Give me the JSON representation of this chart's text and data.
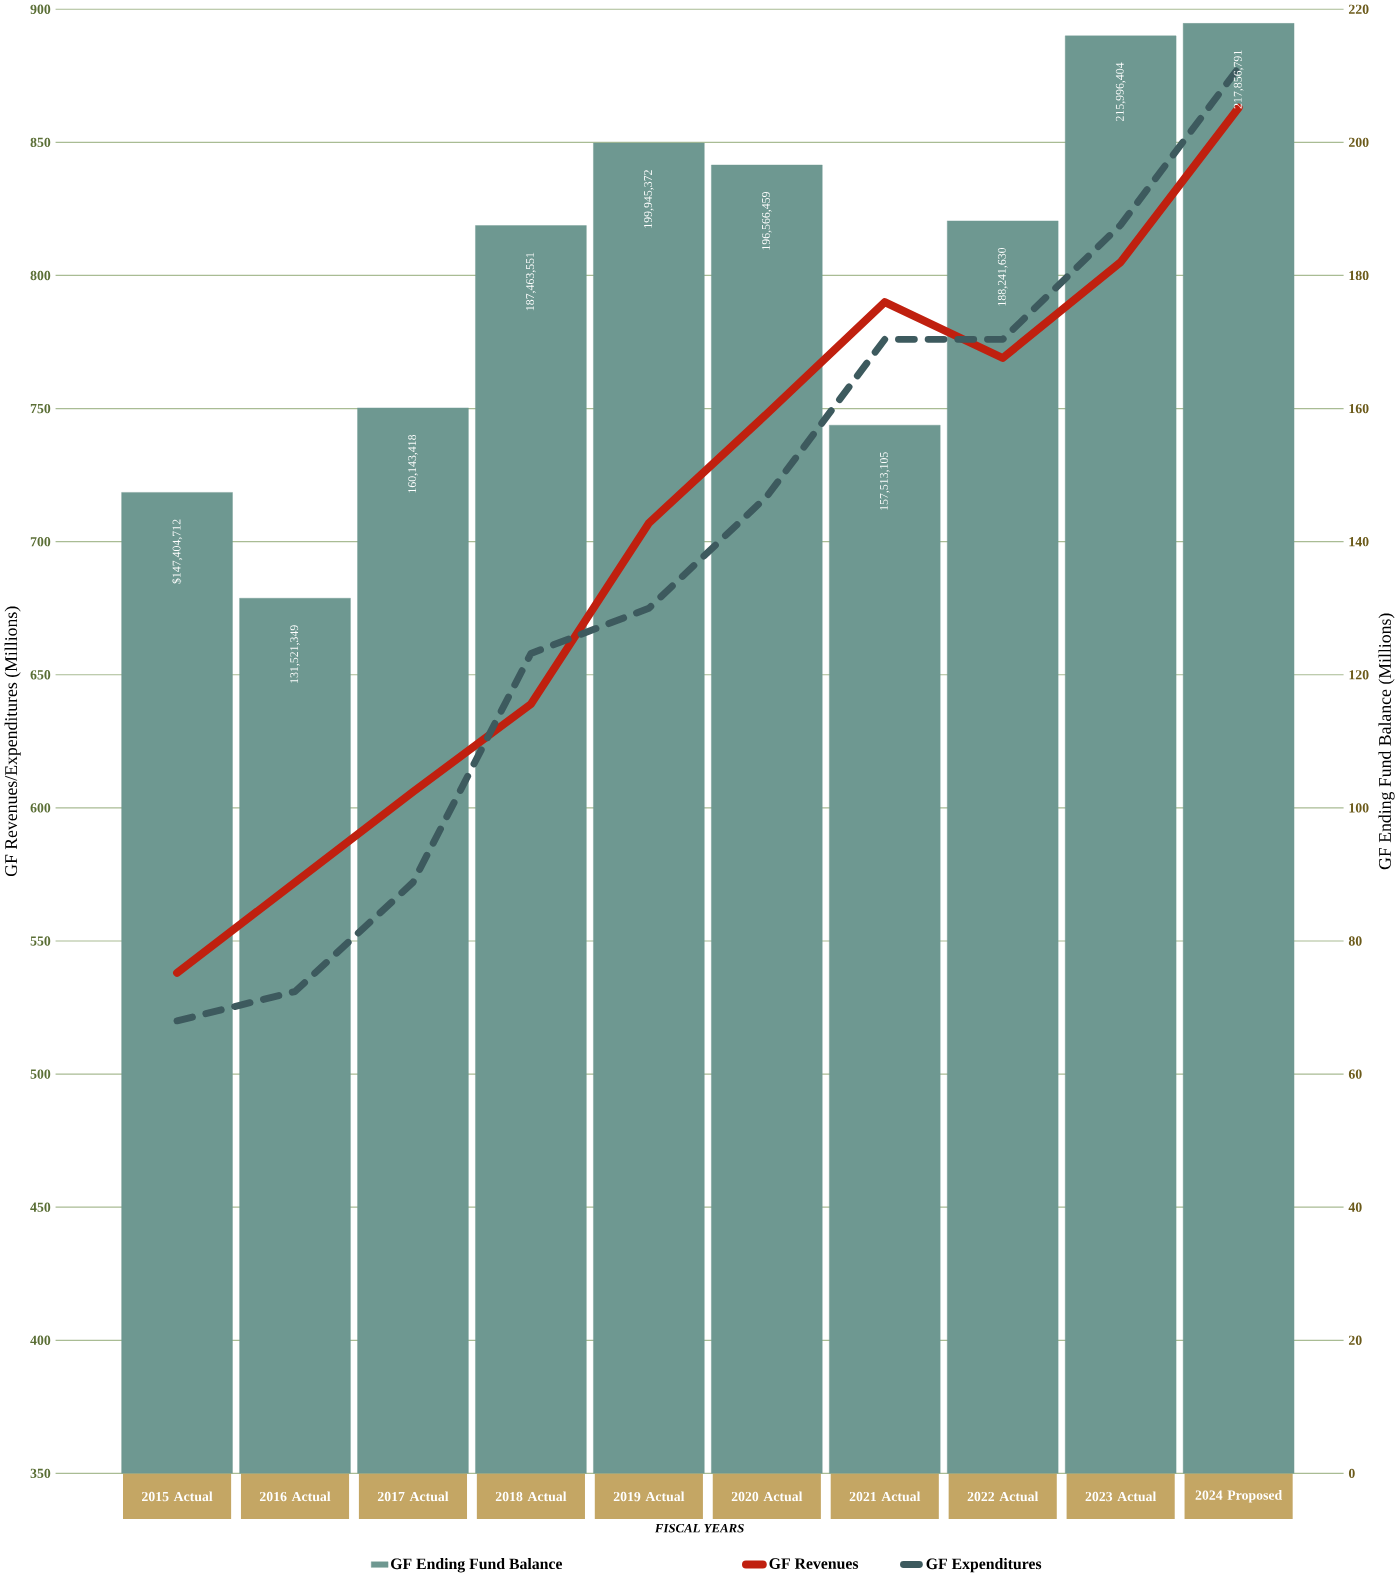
{
  "chart_data": {
    "type": "bar",
    "xlabel": "FISCAL YEARS",
    "ylabel": "GF Revenues/Expenditures (Millions)",
    "y2label": "GF Ending Fund Balance (Millions)",
    "categories": [
      "2015 Actual",
      "2016 Actual",
      "2017 Actual",
      "2018 Actual",
      "2019 Actual",
      "2020 Actual",
      "2021 Actual",
      "2022 Actual",
      "2023 Actual",
      "2024 Proposed"
    ],
    "series": [
      {
        "name": "GF Ending Fund Balance",
        "axis": "y2",
        "color": "#6e9891",
        "values": [
          147.4,
          131.5,
          160.1,
          187.5,
          199.9,
          196.6,
          157.5,
          188.2,
          216.0,
          217.9
        ]
      },
      {
        "name": "GF Revenues",
        "type": "line",
        "color": "#c0200f",
        "line_style": "solid",
        "values": [
          538,
          572,
          606,
          639,
          707,
          748,
          790,
          769,
          805,
          863
        ]
      },
      {
        "name": "GF Expenditures",
        "type": "line",
        "color": "#3d5a5e",
        "line_style": "dashed",
        "values": [
          520,
          531,
          572,
          658,
          675,
          717,
          776,
          776,
          819,
          878
        ]
      }
    ],
    "annotations": [
      "$147,404,712",
      "131,521,349",
      "160,143,418",
      "187,463,551",
      "199,945,372",
      "196,566,459",
      "157,513,105",
      "188,241,630",
      "215,996,404",
      "217,856,791"
    ],
    "ylim": [
      350,
      900
    ],
    "yticks": [
      350,
      400,
      450,
      500,
      550,
      600,
      650,
      700,
      750,
      800,
      850,
      900
    ],
    "y2lim": [
      0,
      220
    ],
    "y2ticks": [
      0,
      20,
      40,
      60,
      80,
      100,
      120,
      140,
      160,
      180,
      200,
      220
    ],
    "grid": "y",
    "legend": "bottom"
  }
}
